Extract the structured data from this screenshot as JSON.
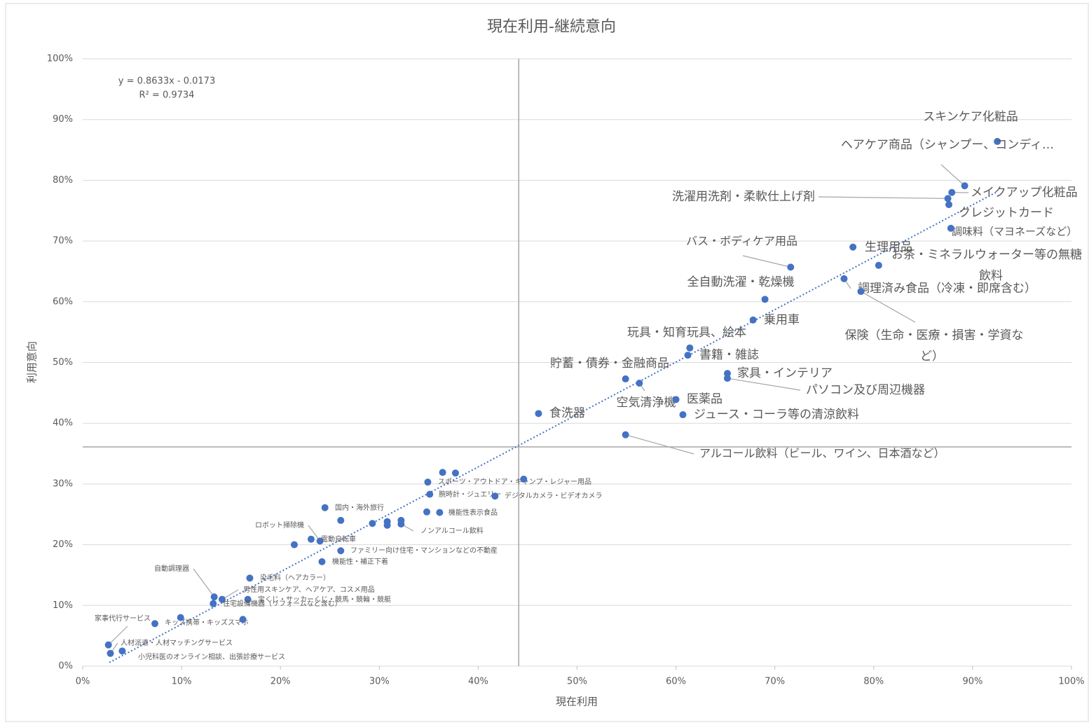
{
  "chart_data": {
    "type": "scatter",
    "title": "現在利用-継続意向",
    "xlabel": "現在利用",
    "ylabel": "利用意向",
    "xlim": [
      0,
      100
    ],
    "ylim": [
      0,
      100
    ],
    "xticks": [
      {
        "value": 0,
        "label": "0%"
      },
      {
        "value": 10,
        "label": "10%"
      },
      {
        "value": 20,
        "label": "20%"
      },
      {
        "value": 30,
        "label": "30%"
      },
      {
        "value": 40,
        "label": "40%"
      },
      {
        "value": 50,
        "label": "50%"
      },
      {
        "value": 60,
        "label": "60%"
      },
      {
        "value": 70,
        "label": "70%"
      },
      {
        "value": 80,
        "label": "80%"
      },
      {
        "value": 90,
        "label": "90%"
      },
      {
        "value": 100,
        "label": "100%"
      }
    ],
    "yticks": [
      {
        "value": 0,
        "label": "0%"
      },
      {
        "value": 10,
        "label": "10%"
      },
      {
        "value": 20,
        "label": "20%"
      },
      {
        "value": 30,
        "label": "30%"
      },
      {
        "value": 40,
        "label": "40%"
      },
      {
        "value": 50,
        "label": "50%"
      },
      {
        "value": 60,
        "label": "60%"
      },
      {
        "value": 70,
        "label": "70%"
      },
      {
        "value": 80,
        "label": "80%"
      },
      {
        "value": 90,
        "label": "90%"
      },
      {
        "value": 100,
        "label": "100%"
      }
    ],
    "grid": true,
    "color": "#4472c4",
    "reference_x": 44.1,
    "reference_y": 36.1,
    "trendline": {
      "slope": 0.8633,
      "intercept": -1.73,
      "x_range": [
        2.7,
        92.5
      ],
      "equation": "y = 0.8633x - 0.0173",
      "r_squared": "R² = 0.9734"
    },
    "points": [
      {
        "label": "スキンケア化粧品",
        "x": 92.5,
        "y": 86.4
      },
      {
        "label": "ヘアケア商品（シャンプー、コンディ…",
        "x": 89.2,
        "y": 79.1
      },
      {
        "label": "メイクアップ化粧品",
        "x": 87.9,
        "y": 78.0
      },
      {
        "label": "洗濯用洗剤・柔軟仕上げ剤",
        "x": 87.5,
        "y": 77.0
      },
      {
        "label": "クレジットカード",
        "x": 87.6,
        "y": 76.0
      },
      {
        "label": "調味料（マヨネーズなど）",
        "x": 87.8,
        "y": 72.1
      },
      {
        "label": "生理用品",
        "x": 77.9,
        "y": 69.0
      },
      {
        "label": [
          "お茶・ミネラルウォーター等の無糖",
          "飲料"
        ],
        "x": 80.5,
        "y": 66.0
      },
      {
        "label": "バス・ボディケア用品",
        "x": 71.6,
        "y": 65.7
      },
      {
        "label": "調理済み食品（冷凍・即席含む）",
        "x": 77.0,
        "y": 63.8
      },
      {
        "label": [
          "保険（生命・医療・損害・学資な",
          "ど）"
        ],
        "x": 78.7,
        "y": 61.7
      },
      {
        "label": "全自動洗濯・乾燥機",
        "x": 69.0,
        "y": 60.4
      },
      {
        "label": "乗用車",
        "x": 67.8,
        "y": 57.0
      },
      {
        "label": "玩具・知育玩具、絵本",
        "x": 61.4,
        "y": 52.4
      },
      {
        "label": "書籍・雑誌",
        "x": 61.2,
        "y": 51.2
      },
      {
        "label": "家具・インテリア",
        "x": 65.2,
        "y": 48.2
      },
      {
        "label": "パソコン及び周辺機器",
        "x": 65.2,
        "y": 47.4
      },
      {
        "label": "貯蓄・債券・金融商品",
        "x": 54.9,
        "y": 47.3
      },
      {
        "label": "空気清浄機",
        "x": 56.3,
        "y": 46.6
      },
      {
        "label": "医薬品",
        "x": 60.0,
        "y": 43.9
      },
      {
        "label": "ジュース・コーラ等の清涼飲料",
        "x": 60.7,
        "y": 41.4
      },
      {
        "label": "食洗器",
        "x": 46.1,
        "y": 41.6
      },
      {
        "label": "アルコール飲料（ビール、ワイン、日本酒など）",
        "x": 54.9,
        "y": 38.1
      },
      {
        "label": "スポーツ・アウトドア・キャンプ・レジャー用品",
        "x": 34.9,
        "y": 30.3
      },
      {
        "label": "腕時計・ジュエリー",
        "x": 35.1,
        "y": 28.3
      },
      {
        "label": "デジタルカメラ・ビデオカメラ",
        "x": 41.7,
        "y": 28.0
      },
      {
        "label": "国内・海外旅行",
        "x": 24.5,
        "y": 26.1
      },
      {
        "label": "機能性表示食品",
        "x": 36.1,
        "y": 25.3
      },
      {
        "label": "ロボット掃除機",
        "x": 24.0,
        "y": 20.6
      },
      {
        "label": "電動自転車",
        "x": 23.1,
        "y": 20.9
      },
      {
        "label": "ファミリー向け住宅・マンションなどの不動産",
        "x": 26.1,
        "y": 19.0
      },
      {
        "label": "機能性・補正下着",
        "x": 24.2,
        "y": 17.2
      },
      {
        "label": "ノンアルコール飲料",
        "x": 32.2,
        "y": 23.4
      },
      {
        "label": "自動調理器",
        "x": 13.3,
        "y": 11.4
      },
      {
        "label": "染毛料（ヘアカラー）",
        "x": 16.9,
        "y": 14.5
      },
      {
        "label": "男性用スキンケア、ヘアケア、コスメ用品",
        "x": 14.1,
        "y": 11.0
      },
      {
        "label": "宝くじ・サッカーくじ・競馬・競輪・競艇",
        "x": 16.7,
        "y": 11.0
      },
      {
        "label": "住宅設備機器（リフォームなど含む）",
        "x": 13.2,
        "y": 10.3
      },
      {
        "label": "家事代行サービス",
        "x": 2.6,
        "y": 3.5
      },
      {
        "label": "キッズ携帯・キッズスマホ",
        "x": 7.3,
        "y": 7.0
      },
      {
        "label": "人材派遣・人材マッチングサービス",
        "x": 2.8,
        "y": 2.1
      },
      {
        "label": "小児科医のオンライン相談、出張診療サービス",
        "x": 4.0,
        "y": 2.5
      },
      {
        "label": null,
        "x": 36.4,
        "y": 31.9
      },
      {
        "label": null,
        "x": 37.7,
        "y": 31.8
      },
      {
        "label": null,
        "x": 44.6,
        "y": 30.8
      },
      {
        "label": null,
        "x": 26.1,
        "y": 24.0
      },
      {
        "label": null,
        "x": 29.3,
        "y": 23.5
      },
      {
        "label": null,
        "x": 30.8,
        "y": 23.8
      },
      {
        "label": null,
        "x": 30.8,
        "y": 23.2
      },
      {
        "label": null,
        "x": 32.2,
        "y": 24.0
      },
      {
        "label": null,
        "x": 34.8,
        "y": 25.4
      },
      {
        "label": null,
        "x": 21.4,
        "y": 20.0
      },
      {
        "label": null,
        "x": 9.9,
        "y": 8.0
      },
      {
        "label": null,
        "x": 16.2,
        "y": 7.7
      }
    ]
  }
}
